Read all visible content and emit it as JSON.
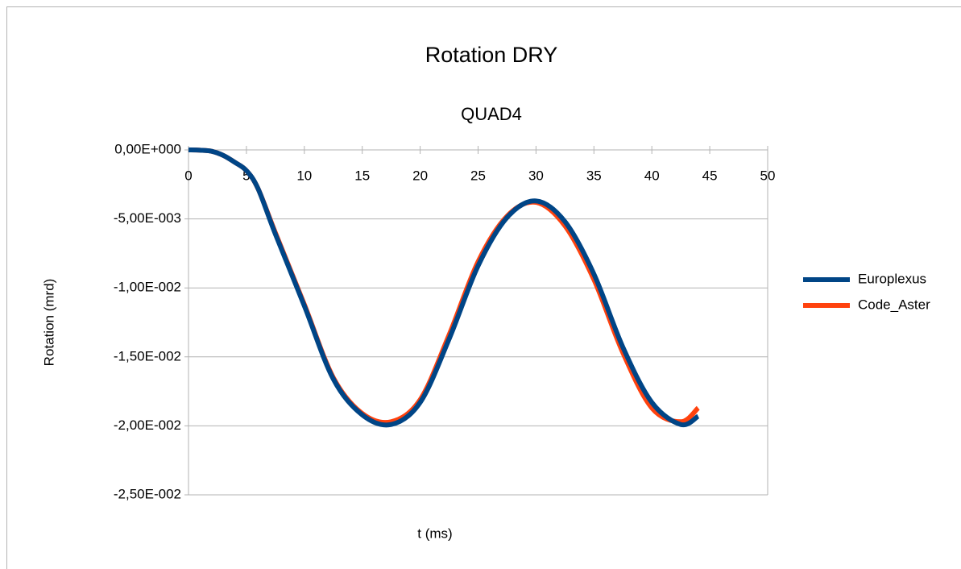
{
  "chart_data": {
    "type": "line",
    "title": "Rotation DRY",
    "subtitle": "QUAD4",
    "x_label": "t (ms)",
    "y_label": "Rotation (mrd)",
    "x": [
      0,
      1,
      2,
      3,
      4,
      5,
      6,
      7.5,
      10,
      12.5,
      15,
      17.5,
      20,
      22.5,
      25,
      27.5,
      30,
      32.5,
      35,
      37.5,
      40,
      42.5,
      44
    ],
    "series": [
      {
        "name": "Europlexus",
        "color": "#004586",
        "values": [
          0,
          -2e-05,
          -0.0001,
          -0.0004,
          -0.0009,
          -0.0015,
          -0.0028,
          -0.0061,
          -0.0113,
          -0.0166,
          -0.0192,
          -0.0199,
          -0.0183,
          -0.0137,
          -0.0084,
          -0.0049,
          -0.0037,
          -0.0052,
          -0.009,
          -0.0143,
          -0.0183,
          -0.0199,
          -0.0193
        ]
      },
      {
        "name": "Code_Aster",
        "color": "#ff420e",
        "values": [
          0,
          -2e-05,
          -0.0001,
          -0.0004,
          -0.0009,
          -0.0015,
          -0.0028,
          -0.006,
          -0.0112,
          -0.0165,
          -0.0191,
          -0.0197,
          -0.0181,
          -0.0134,
          -0.0081,
          -0.0048,
          -0.0038,
          -0.0055,
          -0.0094,
          -0.0147,
          -0.0187,
          -0.0197,
          -0.0187
        ]
      }
    ],
    "xlim": [
      0,
      50
    ],
    "xticks": [
      0,
      5,
      10,
      15,
      20,
      25,
      30,
      35,
      40,
      45,
      50
    ],
    "ylim": [
      -0.025,
      0
    ],
    "yticks": [
      {
        "value": 0,
        "label": "0,00E+000"
      },
      {
        "value": -0.005,
        "label": "-5,00E-003"
      },
      {
        "value": -0.01,
        "label": "-1,00E-002"
      },
      {
        "value": -0.015,
        "label": "-1,50E-002"
      },
      {
        "value": -0.02,
        "label": "-2,00E-002"
      },
      {
        "value": -0.025,
        "label": "-2,50E-002"
      }
    ],
    "grid": true,
    "legend": "right"
  }
}
